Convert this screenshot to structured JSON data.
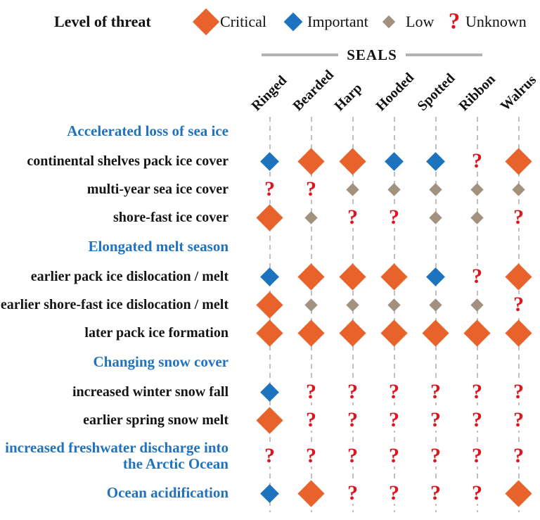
{
  "colors": {
    "critical": "#E8622B",
    "important": "#1E73BE",
    "low": "#A39180",
    "unknown": "#DF1620",
    "heading": "#2272BE",
    "dash": "#C0C0C0",
    "rule": "#B3B3B3"
  },
  "legend": {
    "title": "Level of threat",
    "items": [
      {
        "level": "critical",
        "label": "Critical"
      },
      {
        "level": "important",
        "label": "Important"
      },
      {
        "level": "low",
        "label": "Low"
      },
      {
        "level": "unknown",
        "label": "Unknown"
      }
    ]
  },
  "group_header": "SEALS",
  "chart_data": {
    "type": "heatmap",
    "title": "Level of threat",
    "legend_levels": {
      "critical": "Critical",
      "important": "Important",
      "low": "Low",
      "unknown": "Unknown"
    },
    "columns": [
      "Ringed",
      "Bearded",
      "Harp",
      "Hooded",
      "Spotted",
      "Ribbon",
      "Walrus"
    ],
    "columns_group": {
      "label": "SEALS",
      "applies_to": [
        "Ringed",
        "Bearded",
        "Harp",
        "Hooded",
        "Spotted",
        "Ribbon"
      ]
    },
    "sections": [
      {
        "heading": "Accelerated loss of sea ice",
        "rows": [
          {
            "label": "continental shelves pack ice cover",
            "values": [
              "important",
              "critical",
              "critical",
              "important",
              "important",
              "unknown",
              "critical"
            ]
          },
          {
            "label": "multi-year sea ice cover",
            "values": [
              "unknown",
              "unknown",
              "low",
              "low",
              "low",
              "low",
              "low"
            ]
          },
          {
            "label": "shore-fast ice cover",
            "values": [
              "critical",
              "low",
              "unknown",
              "unknown",
              "low",
              "low",
              "unknown"
            ]
          }
        ]
      },
      {
        "heading": "Elongated melt season",
        "rows": [
          {
            "label": "earlier pack ice dislocation / melt",
            "values": [
              "important",
              "critical",
              "critical",
              "critical",
              "important",
              "unknown",
              "critical"
            ]
          },
          {
            "label": "earlier shore-fast ice dislocation / melt",
            "values": [
              "critical",
              "low",
              "low",
              "low",
              "low",
              "low",
              "unknown"
            ]
          },
          {
            "label": "later pack ice formation",
            "values": [
              "critical",
              "critical",
              "critical",
              "critical",
              "critical",
              "critical",
              "critical"
            ]
          }
        ]
      },
      {
        "heading": "Changing snow cover",
        "rows": [
          {
            "label": "increased winter snow fall",
            "values": [
              "important",
              "unknown",
              "unknown",
              "unknown",
              "unknown",
              "unknown",
              "unknown"
            ]
          },
          {
            "label": "earlier spring snow melt",
            "values": [
              "critical",
              "unknown",
              "unknown",
              "unknown",
              "unknown",
              "unknown",
              "unknown"
            ]
          }
        ]
      },
      {
        "heading": null,
        "rows": [
          {
            "label": "increased freshwater discharge into the Arctic Ocean",
            "label_style": "heading",
            "values": [
              "unknown",
              "unknown",
              "unknown",
              "unknown",
              "unknown",
              "unknown",
              "unknown"
            ]
          },
          {
            "label": "Ocean acidification",
            "label_style": "heading",
            "values": [
              "important",
              "critical",
              "unknown",
              "unknown",
              "unknown",
              "unknown",
              "critical"
            ]
          }
        ]
      }
    ]
  }
}
